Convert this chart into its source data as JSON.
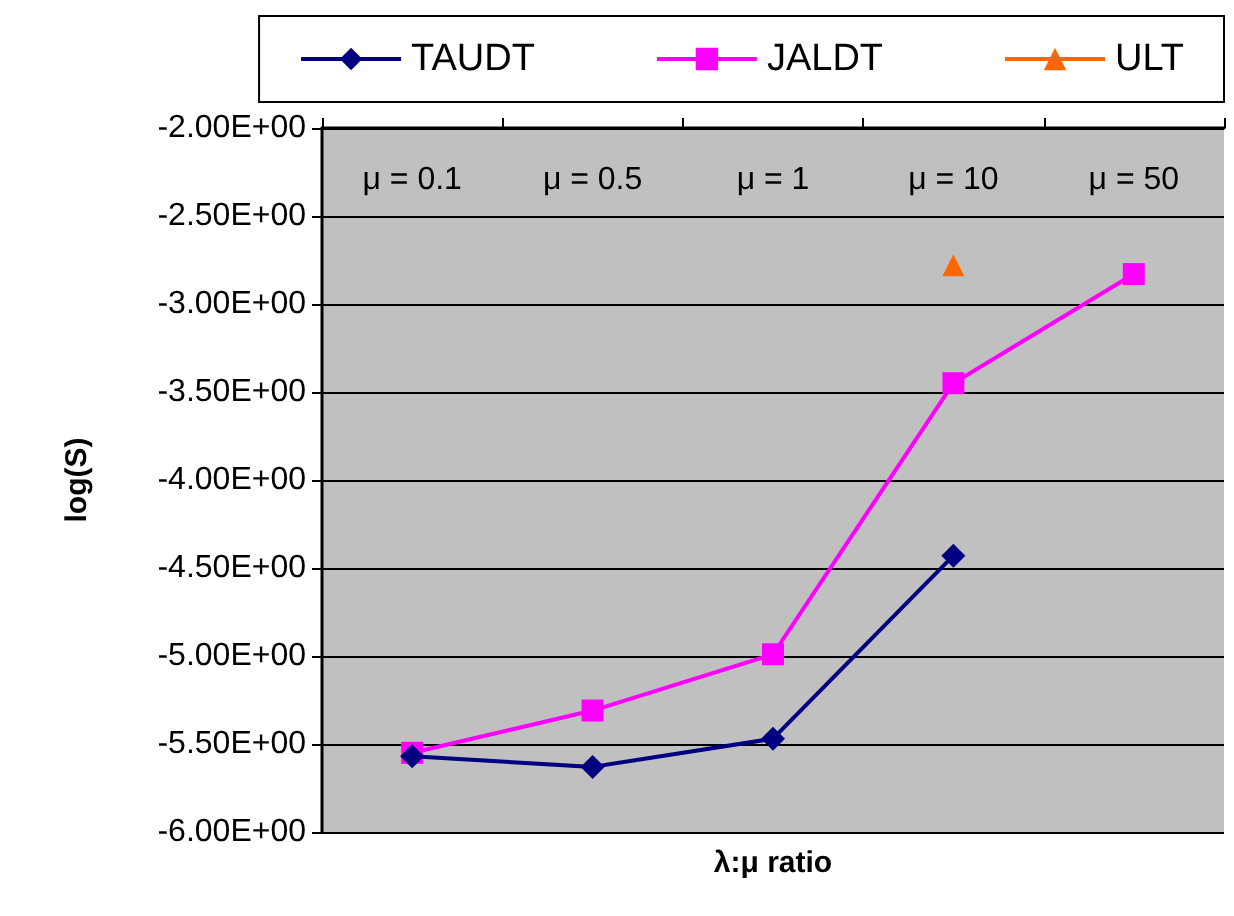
{
  "chart_data": {
    "type": "line",
    "xlabel": "λ:μ ratio",
    "ylabel": "log(S)",
    "categories": [
      "μ = 0.1",
      "μ = 0.5",
      "μ = 1",
      "μ = 10",
      "μ = 50"
    ],
    "series": [
      {
        "name": "TAUDT",
        "color": "#000080",
        "marker": "diamond",
        "values": [
          -5.57,
          -5.63,
          -5.47,
          -4.43,
          null
        ]
      },
      {
        "name": "JALDT",
        "color": "#ff00ff",
        "marker": "square",
        "values": [
          -5.55,
          -5.31,
          -4.99,
          -3.45,
          -2.83
        ]
      },
      {
        "name": "ULT",
        "color": "#ff6600",
        "marker": "triangle",
        "values": [
          null,
          null,
          null,
          -2.78,
          null
        ]
      }
    ],
    "ylim": [
      -6,
      -2
    ],
    "yticks": [
      {
        "value": -6,
        "label": "-6.00E+00"
      },
      {
        "value": -5.5,
        "label": "-5.50E+00"
      },
      {
        "value": -5,
        "label": "-5.00E+00"
      },
      {
        "value": -4.5,
        "label": "-4.50E+00"
      },
      {
        "value": -4,
        "label": "-4.00E+00"
      },
      {
        "value": -3.5,
        "label": "-3.50E+00"
      },
      {
        "value": -3,
        "label": "-3.00E+00"
      },
      {
        "value": -2.5,
        "label": "-2.50E+00"
      },
      {
        "value": -2,
        "label": "-2.00E+00"
      }
    ],
    "grid": "y",
    "legend": "top"
  }
}
